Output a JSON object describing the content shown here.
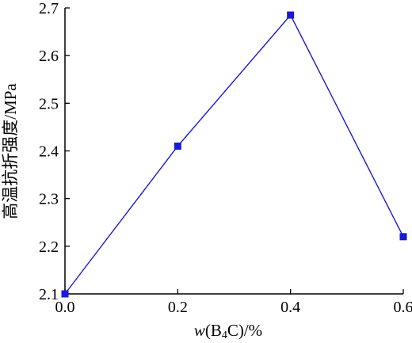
{
  "chart_data": {
    "type": "line",
    "x": [
      0.0,
      0.2,
      0.4,
      0.6
    ],
    "series": [
      {
        "values": [
          2.1,
          2.41,
          2.685,
          2.22
        ],
        "color": "#1a1ad6",
        "marker": "square"
      }
    ],
    "xlabel": {
      "prefix": "w",
      "open": "(B",
      "sub": "4",
      "close": "C)/%"
    },
    "ylabel": "高温抗折强度/MPa",
    "xlim": [
      0.0,
      0.6
    ],
    "ylim": [
      2.1,
      2.7
    ],
    "xticks": [
      0.0,
      0.2,
      0.4,
      0.6
    ],
    "xtick_labels": [
      "0.0",
      "0.2",
      "0.4",
      "0.6"
    ],
    "yticks": [
      2.1,
      2.2,
      2.3,
      2.4,
      2.5,
      2.6,
      2.7
    ],
    "ytick_labels": [
      "2.1",
      "2.2",
      "2.3",
      "2.4",
      "2.5",
      "2.6",
      "2.7"
    ],
    "grid": false,
    "legend": "none"
  }
}
